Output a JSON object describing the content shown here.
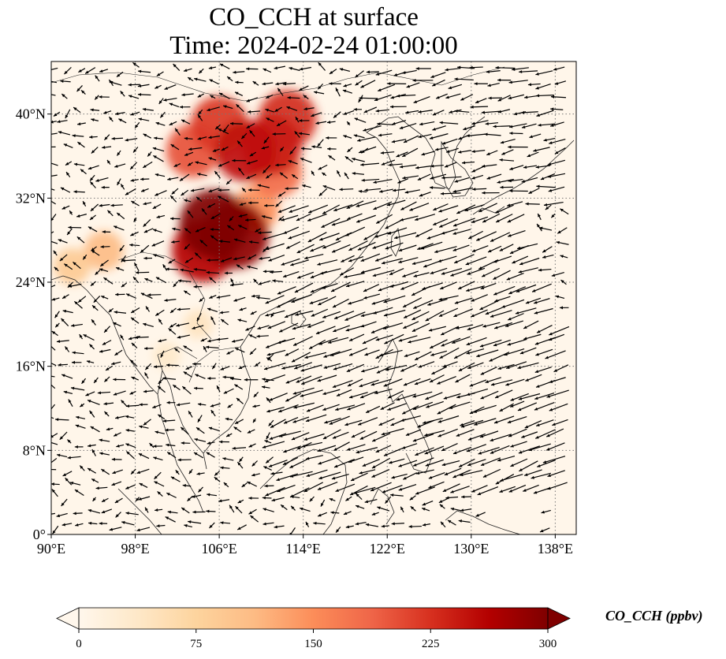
{
  "title": {
    "line1": "CO_CCH at surface",
    "line2": "Time: 2024-02-24 01:00:00"
  },
  "map": {
    "lon_range": [
      90,
      140
    ],
    "lat_range": [
      0,
      45
    ],
    "lon_ticks": [
      {
        "value": 90,
        "label": "90°E"
      },
      {
        "value": 98,
        "label": "98°E"
      },
      {
        "value": 106,
        "label": "106°E"
      },
      {
        "value": 114,
        "label": "114°E"
      },
      {
        "value": 122,
        "label": "122°E"
      },
      {
        "value": 130,
        "label": "130°E"
      },
      {
        "value": 138,
        "label": "138°E"
      }
    ],
    "lat_ticks": [
      {
        "value": 0,
        "label": "0°"
      },
      {
        "value": 8,
        "label": "8°N"
      },
      {
        "value": 16,
        "label": "16°N"
      },
      {
        "value": 24,
        "label": "24°N"
      },
      {
        "value": 32,
        "label": "32°N"
      },
      {
        "value": 40,
        "label": "40°N"
      }
    ],
    "gridlines": true,
    "wind_vectors": true
  },
  "colorbar": {
    "label": "CO_CCH (ppbv)",
    "min": 0,
    "max": 300,
    "extend": "both",
    "colormap": "OrRd",
    "ticks": [
      {
        "value": 0,
        "label": "0"
      },
      {
        "value": 75,
        "label": "75"
      },
      {
        "value": 150,
        "label": "150"
      },
      {
        "value": 225,
        "label": "225"
      },
      {
        "value": 300,
        "label": "300"
      }
    ],
    "colors": [
      "#fff7ec",
      "#fee8c8",
      "#fdd49e",
      "#fdbb84",
      "#fc8d59",
      "#ef6548",
      "#d7301f",
      "#b30000",
      "#7f0000"
    ]
  },
  "chart_data": {
    "type": "heatmap",
    "variable": "CO_CCH",
    "units": "ppbv",
    "level": "surface",
    "time": "2024-02-24 01:00:00",
    "hotspots": [
      {
        "lon": 105.5,
        "lat": 29.5,
        "value": 300
      },
      {
        "lon": 107.5,
        "lat": 28.5,
        "value": 290
      },
      {
        "lon": 104.5,
        "lat": 27.0,
        "value": 260
      },
      {
        "lon": 108.5,
        "lat": 36.5,
        "value": 250
      },
      {
        "lon": 111.0,
        "lat": 37.0,
        "value": 240
      },
      {
        "lon": 112.5,
        "lat": 39.5,
        "value": 230
      },
      {
        "lon": 106.0,
        "lat": 39.0,
        "value": 220
      },
      {
        "lon": 103.5,
        "lat": 36.5,
        "value": 200
      },
      {
        "lon": 111.5,
        "lat": 34.5,
        "value": 180
      },
      {
        "lon": 109.5,
        "lat": 31.0,
        "value": 150
      },
      {
        "lon": 95.0,
        "lat": 27.0,
        "value": 110
      },
      {
        "lon": 92.0,
        "lat": 25.5,
        "value": 90
      },
      {
        "lon": 104.0,
        "lat": 20.0,
        "value": 45
      },
      {
        "lon": 101.0,
        "lat": 17.0,
        "value": 35
      }
    ]
  }
}
